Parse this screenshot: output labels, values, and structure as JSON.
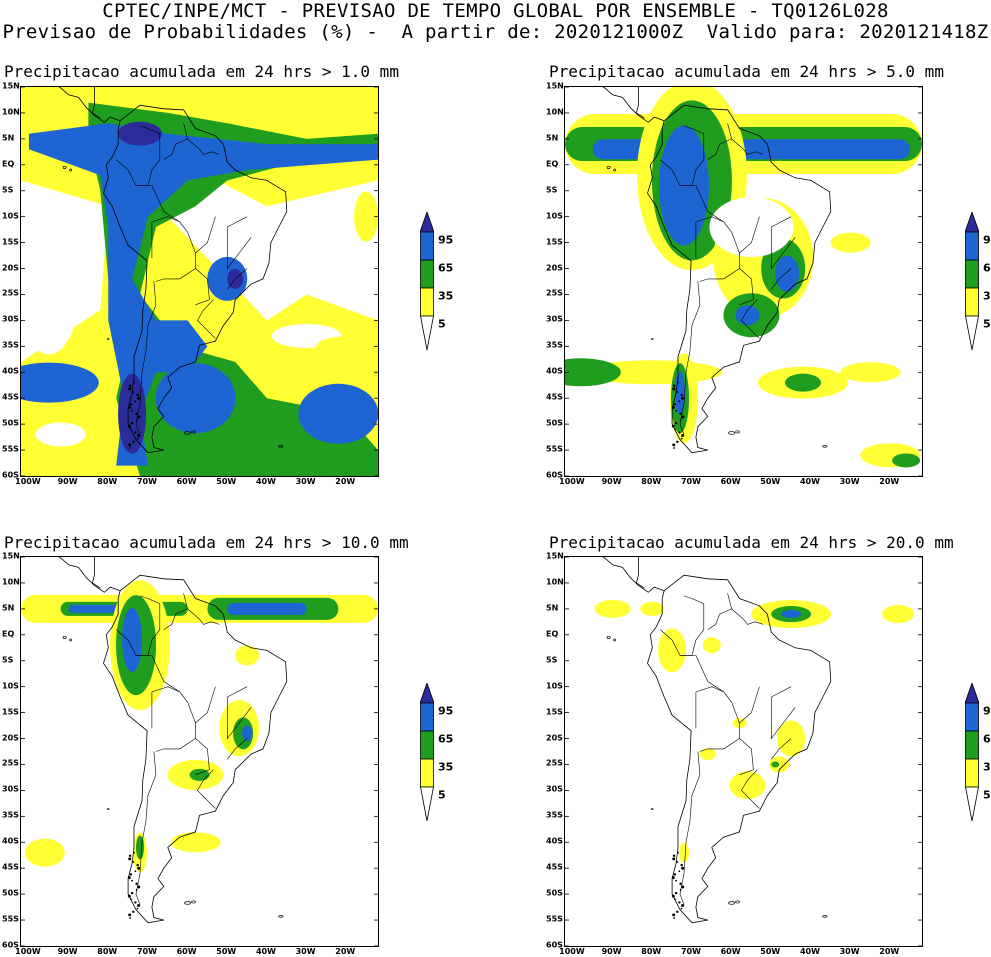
{
  "header": {
    "line1": "CPTEC/INPE/MCT - PREVISAO DE TEMPO GLOBAL POR ENSEMBLE - TQ0126L028",
    "line2": "Previsao de Probabilidades (%) -  A partir de: 2020121000Z  Valido para: 2020121418Z"
  },
  "colors": {
    "p5": "#ffff33",
    "p35": "#1f9d1f",
    "p65": "#1e64d2",
    "p95": "#2b2b99",
    "land_outline": "#000000"
  },
  "axes": {
    "y_labels": [
      "15N",
      "10N",
      "5N",
      "EQ",
      "5S",
      "10S",
      "15S",
      "20S",
      "25S",
      "30S",
      "35S",
      "40S",
      "45S",
      "50S",
      "55S",
      "60S"
    ],
    "x_labels": [
      "100W",
      "90W",
      "80W",
      "70W",
      "60W",
      "50W",
      "40W",
      "30W",
      "20W"
    ]
  },
  "legend": {
    "levels": [
      "95",
      "65",
      "35",
      "5"
    ]
  },
  "panels": [
    {
      "title": "Precipitacao acumulada em 24 hrs > 1.0 mm"
    },
    {
      "title": "Precipitacao acumulada em 24 hrs > 5.0 mm"
    },
    {
      "title": "Precipitacao acumulada em 24 hrs > 10.0 mm"
    },
    {
      "title": "Precipitacao acumulada em 24 hrs > 20.0 mm"
    }
  ]
}
